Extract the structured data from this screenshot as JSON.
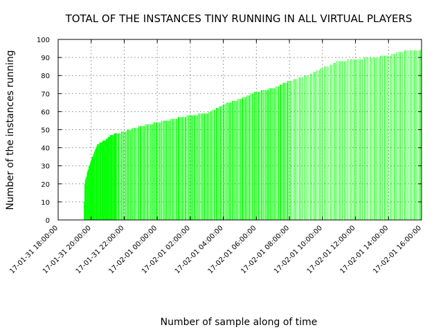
{
  "chart_data": {
    "type": "bar",
    "title": "TOTAL OF THE INSTANCES TINY RUNNING IN ALL VIRTUAL PLAYERS",
    "xlabel": "Number of sample along of time",
    "ylabel": "Number of the instances running",
    "ylim": [
      0,
      100
    ],
    "y_ticks": [
      0,
      10,
      20,
      30,
      40,
      50,
      60,
      70,
      80,
      90,
      100
    ],
    "x_tick_labels": [
      "17-01-31 18:00:00",
      "17-01-31 20:00:00",
      "17-01-31 22:00:00",
      "17-02-01 00:00:00",
      "17-02-01 02:00:00",
      "17-02-01 04:00:00",
      "17-02-01 06:00:00",
      "17-02-01 08:00:00",
      "17-02-01 10:00:00",
      "17-02-01 12:00:00",
      "17-02-01 14:00:00",
      "17-02-01 16:00:00"
    ],
    "xlim_hours": [
      0,
      22
    ],
    "grid": true,
    "bar_color": "#00ff00",
    "series_profile": [
      {
        "hour": 1.55,
        "value": 0
      },
      {
        "hour": 1.6,
        "value": 20
      },
      {
        "hour": 1.8,
        "value": 28
      },
      {
        "hour": 2.0,
        "value": 33
      },
      {
        "hour": 2.2,
        "value": 38
      },
      {
        "hour": 2.4,
        "value": 42
      },
      {
        "hour": 2.8,
        "value": 44
      },
      {
        "hour": 3.2,
        "value": 47
      },
      {
        "hour": 4.0,
        "value": 49
      },
      {
        "hour": 5.0,
        "value": 52
      },
      {
        "hour": 6.0,
        "value": 54
      },
      {
        "hour": 7.0,
        "value": 56
      },
      {
        "hour": 8.0,
        "value": 58
      },
      {
        "hour": 9.0,
        "value": 59
      },
      {
        "hour": 10.0,
        "value": 64
      },
      {
        "hour": 11.0,
        "value": 67
      },
      {
        "hour": 12.0,
        "value": 71
      },
      {
        "hour": 13.0,
        "value": 73
      },
      {
        "hour": 14.0,
        "value": 77
      },
      {
        "hour": 15.0,
        "value": 80
      },
      {
        "hour": 16.0,
        "value": 84
      },
      {
        "hour": 17.0,
        "value": 88
      },
      {
        "hour": 18.0,
        "value": 89
      },
      {
        "hour": 19.0,
        "value": 90
      },
      {
        "hour": 20.0,
        "value": 91
      },
      {
        "hour": 21.0,
        "value": 94
      },
      {
        "hour": 21.95,
        "value": 94
      }
    ]
  }
}
